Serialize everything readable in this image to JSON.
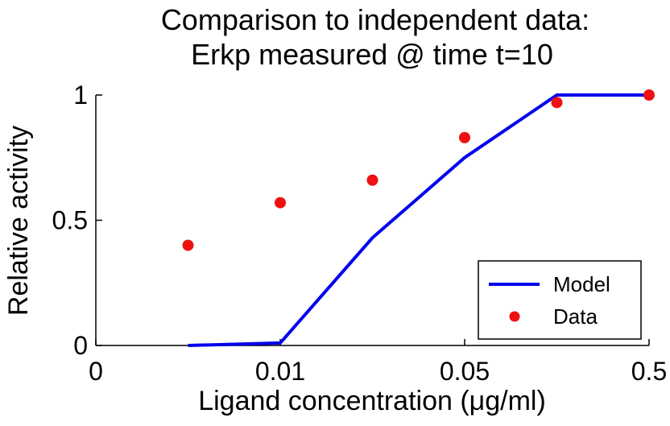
{
  "chart_data": {
    "type": "line",
    "title": [
      "Comparison to independent data:",
      "Erkp measured @ time t=10"
    ],
    "xlabel": "Ligand concentration (μg/ml)",
    "ylabel": "Relative activity",
    "x_categories": [
      "0",
      "",
      "0.01",
      "",
      "0.05",
      "",
      "0.5"
    ],
    "x_tick_labels": [
      {
        "index": 0,
        "label": "0"
      },
      {
        "index": 2,
        "label": "0.01"
      },
      {
        "index": 4,
        "label": "0.05"
      },
      {
        "index": 6,
        "label": "0.5"
      }
    ],
    "y_ticks": [
      0,
      0.5,
      1
    ],
    "y_tick_labels": [
      "0",
      "0.5",
      "1"
    ],
    "ylim": [
      0,
      1
    ],
    "xlim_index": [
      0,
      6
    ],
    "series": [
      {
        "name": "Model",
        "style": "line",
        "color": "#0000ee",
        "x_index": [
          1,
          2,
          3,
          4,
          5,
          6
        ],
        "values": [
          0.0,
          0.01,
          0.43,
          0.75,
          1.0,
          1.0
        ]
      },
      {
        "name": "Data",
        "style": "marker",
        "color": "#ee1111",
        "x_index": [
          1,
          2,
          3,
          4,
          5,
          6
        ],
        "values": [
          0.4,
          0.57,
          0.66,
          0.83,
          0.97,
          1.0
        ]
      }
    ],
    "legend": {
      "position": "bottom-right",
      "entries": [
        "Model",
        "Data"
      ]
    }
  }
}
